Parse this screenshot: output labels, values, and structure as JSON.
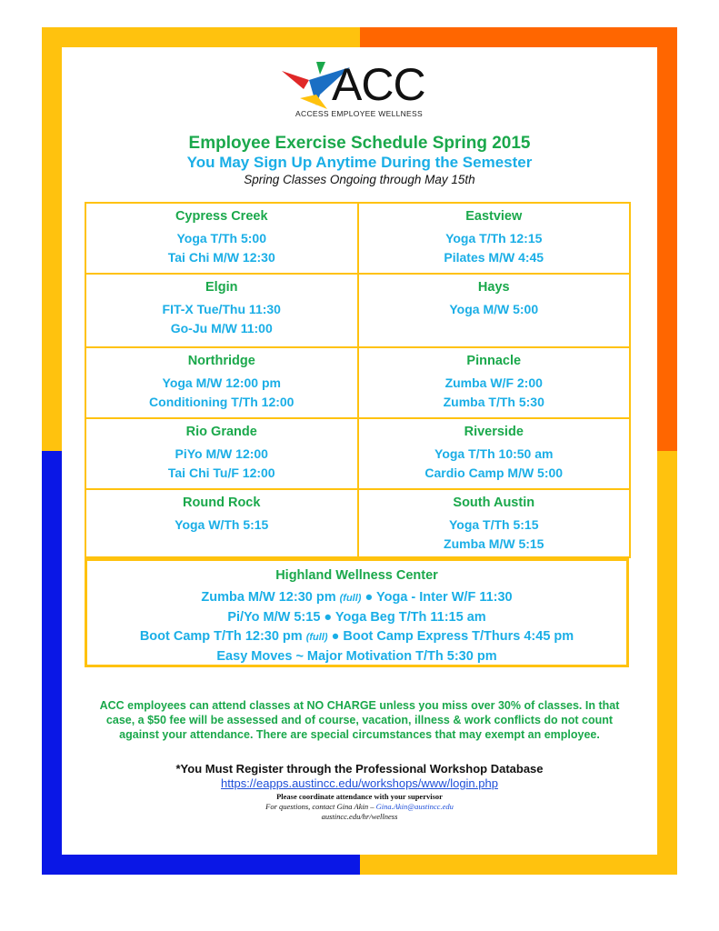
{
  "colors": {
    "yellow": "#ffc20e",
    "orange": "#ff6600",
    "blue": "#0a17e6",
    "green": "#1aa84b",
    "cyan": "#1aaee6"
  },
  "logo": {
    "text": "ACC",
    "subtitle": "ACCESS EMPLOYEE WELLNESS"
  },
  "header": {
    "title": "Employee Exercise Schedule Spring 2015",
    "subtitle": "You May Sign Up Anytime During the Semester",
    "note": "Spring Classes Ongoing through May 15th"
  },
  "locations": [
    {
      "name": "Cypress Creek",
      "classes": [
        "Yoga T/Th 5:00",
        "Tai Chi M/W 12:30"
      ]
    },
    {
      "name": "Eastview",
      "classes": [
        "Yoga T/Th 12:15",
        "Pilates M/W 4:45"
      ]
    },
    {
      "name": "Elgin",
      "classes": [
        "FIT-X  Tue/Thu 11:30",
        "Go-Ju M/W 11:00"
      ]
    },
    {
      "name": "Hays",
      "classes": [
        "Yoga M/W 5:00"
      ]
    },
    {
      "name": "Northridge",
      "classes": [
        "Yoga  M/W 12:00 pm",
        "Conditioning T/Th 12:00"
      ]
    },
    {
      "name": "Pinnacle",
      "classes": [
        "Zumba W/F 2:00",
        "Zumba T/Th 5:30"
      ]
    },
    {
      "name": "Rio Grande",
      "classes": [
        "PiYo  M/W 12:00",
        "Tai Chi  Tu/F 12:00"
      ]
    },
    {
      "name": "Riverside",
      "classes": [
        "Yoga T/Th 10:50 am",
        "Cardio Camp M/W 5:00"
      ]
    },
    {
      "name": "Round Rock",
      "classes": [
        "Yoga W/Th 5:15"
      ]
    },
    {
      "name": "South Austin",
      "classes": [
        "Yoga T/Th 5:15",
        "Zumba M/W 5:15"
      ]
    }
  ],
  "highland": {
    "name": "Highland Wellness Center",
    "l1a": "Zumba  M/W 12:30 pm ",
    "l1b": "(full)",
    "l1c": " ● Yoga - Inter W/F 11:30",
    "l2": "Pi/Yo M/W 5:15 ● Yoga Beg T/Th 11:15 am",
    "l3a": "Boot Camp T/Th 12:30 pm ",
    "l3b": "(full)",
    "l3c": " ● Boot Camp Express T/Thurs 4:45 pm",
    "l4": "Easy Moves ~ Major Motivation T/Th 5:30 pm"
  },
  "policy": "ACC employees can attend classes at NO CHARGE unless you miss over 30% of classes. In that case, a $50 fee will be assessed and of course, vacation, illness & work conflicts do not count against your attendance. There are special circumstances that may exempt an employee.",
  "footer": {
    "register": "*You Must Register through the Professional Workshop Database",
    "url": "https://eapps.austincc.edu/workshops/www/login.php",
    "coordinate": "Please coordinate attendance with your supervisor",
    "contact": "For questions, contact Gina Akin – ",
    "email": "Gina.Akin@austincc.edu",
    "site": "austincc.edu/hr/wellness"
  }
}
